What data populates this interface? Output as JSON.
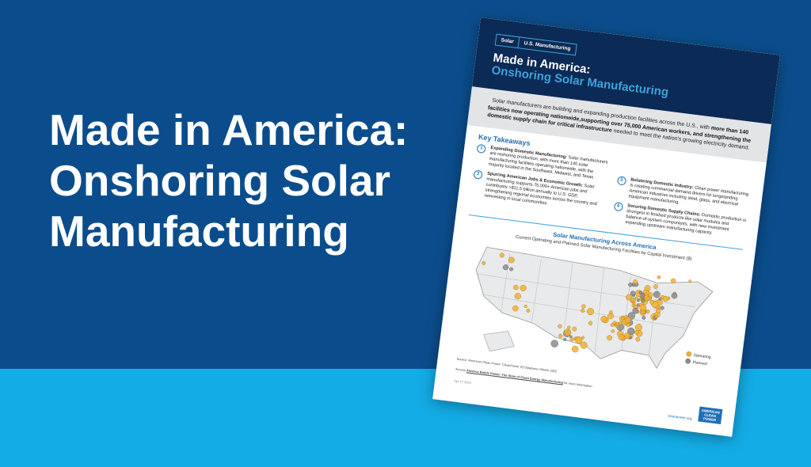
{
  "banner": {
    "title_lines": [
      "Made in America:",
      "Onshoring Solar",
      "Manufacturing"
    ]
  },
  "document": {
    "tags": [
      "Solar",
      "U.S. Manufacturing"
    ],
    "title": "Made in America:",
    "subtitle": "Onshoring Solar Manufacturing",
    "intro": {
      "text": "Solar manufacturers are building and expanding production facilities across the U.S., with",
      "bold": "more than 140 facilities now operating nationwide,supporting over 75,000 American workers, and strengthening the domestic supply chain for critical infrastructure",
      "end": "needed to meet the nation's growing electricity demand."
    },
    "takeaways_heading": "Key Takeaways",
    "takeaways": [
      {
        "number": "1",
        "heading": "Expanding Domestic Manufacturing:",
        "text": "Solar manufacturers are reshoring production, with more than 140 solar manufacturing facilities operating nationwide, with the majority located in the Southeast, Midwest, and Texas."
      },
      {
        "number": "2",
        "heading": "Spurring American Jobs & Economic Growth:",
        "text": "Solar manufacturing supports 75,000+ American jobs and contributes >$11.5 billion annually to U.S. GDP, strengthening regional economies across the country and reinvesting in local communities."
      },
      {
        "number": "3",
        "heading": "Bolstering Domestic Industry:",
        "text": "Clean power manufacturing is creating commercial demand drivers for longstanding American industries including steel, glass, and electrical equipment manufacturing."
      },
      {
        "number": "4",
        "heading": "Securing Domestic Supply Chains:",
        "text": "Domestic production is strongest in finished products like solar modules and balance-of-system components, with new investment expanding upstream manufacturing capacity."
      }
    ],
    "map": {
      "title": "Solar Manufacturing Across America",
      "subtitle": "Current Operating and Planned Solar Manufacturing Facilities by Capital Investment ($)",
      "legend": [
        "Operating",
        "Planned"
      ]
    },
    "source": "Source: American Clean Power: CleanPower IQ Database | March 2025",
    "access": {
      "prefix": "Access",
      "link": "America Builds Power: The State of Clean Energy Manufacturing",
      "suffix": "for more information"
    },
    "date": "Apr 17 2025",
    "website": "cleanpower.org",
    "logo": [
      "AMERICAN",
      "CLEAN",
      "POWER"
    ]
  }
}
